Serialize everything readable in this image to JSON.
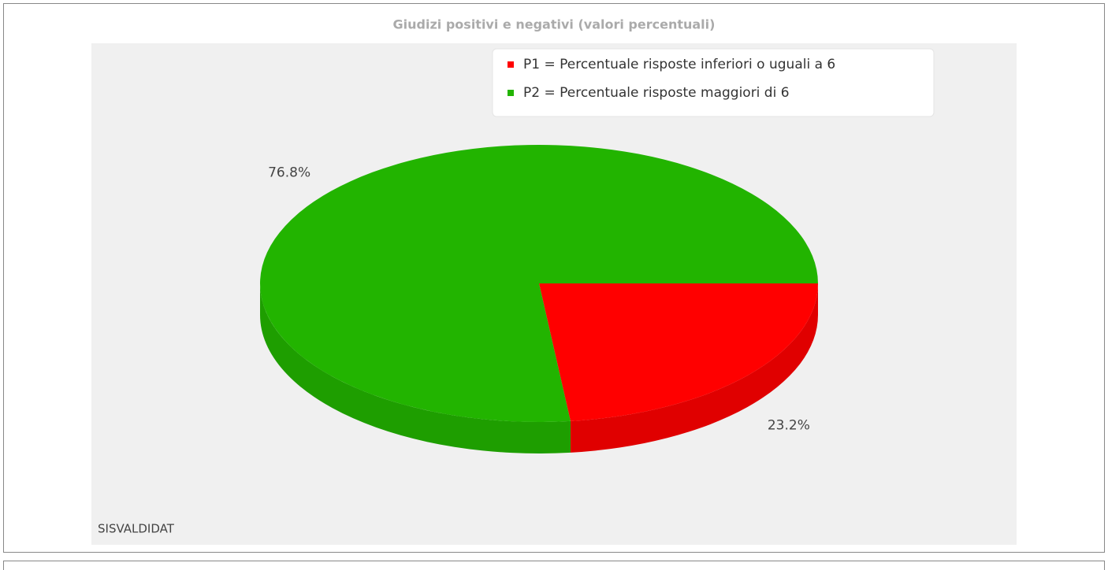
{
  "chart_data": {
    "type": "pie",
    "title": "Giudizi positivi e negativi (valori percentuali)",
    "categories": [
      "P1 = Percentuale risposte inferiori o uguali a 6",
      "P2 = Percentuale risposte maggiori di 6"
    ],
    "values": [
      23.2,
      76.8
    ],
    "value_labels": [
      "23.2%",
      "76.8%"
    ],
    "colors": [
      "#ff0000",
      "#22b400"
    ],
    "legend": "top-right",
    "source": "SISVALDIDAT"
  }
}
